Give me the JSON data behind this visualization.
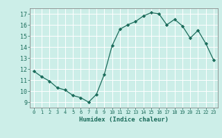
{
  "x": [
    0,
    1,
    2,
    3,
    4,
    5,
    6,
    7,
    8,
    9,
    10,
    11,
    12,
    13,
    14,
    15,
    16,
    17,
    18,
    19,
    20,
    21,
    22,
    23
  ],
  "y": [
    11.8,
    11.3,
    10.9,
    10.3,
    10.1,
    9.6,
    9.4,
    9.0,
    9.7,
    11.5,
    14.1,
    15.6,
    16.0,
    16.3,
    16.8,
    17.1,
    17.0,
    16.0,
    16.5,
    15.9,
    14.8,
    15.5,
    14.3,
    12.8
  ],
  "line_color": "#1a6b5a",
  "marker": "D",
  "marker_size": 2.2,
  "bg_color": "#cceee8",
  "grid_color": "#ffffff",
  "xlabel": "Humidex (Indice chaleur)",
  "ylabel_ticks": [
    9,
    10,
    11,
    12,
    13,
    14,
    15,
    16,
    17
  ],
  "xtick_labels": [
    "0",
    "1",
    "2",
    "3",
    "4",
    "5",
    "6",
    "7",
    "8",
    "9",
    "10",
    "11",
    "12",
    "13",
    "14",
    "15",
    "16",
    "17",
    "18",
    "19",
    "20",
    "21",
    "22",
    "23"
  ],
  "xlim": [
    -0.5,
    23.5
  ],
  "ylim": [
    8.5,
    17.5
  ],
  "tick_color": "#1a6b5a",
  "label_color": "#1a6b5a"
}
